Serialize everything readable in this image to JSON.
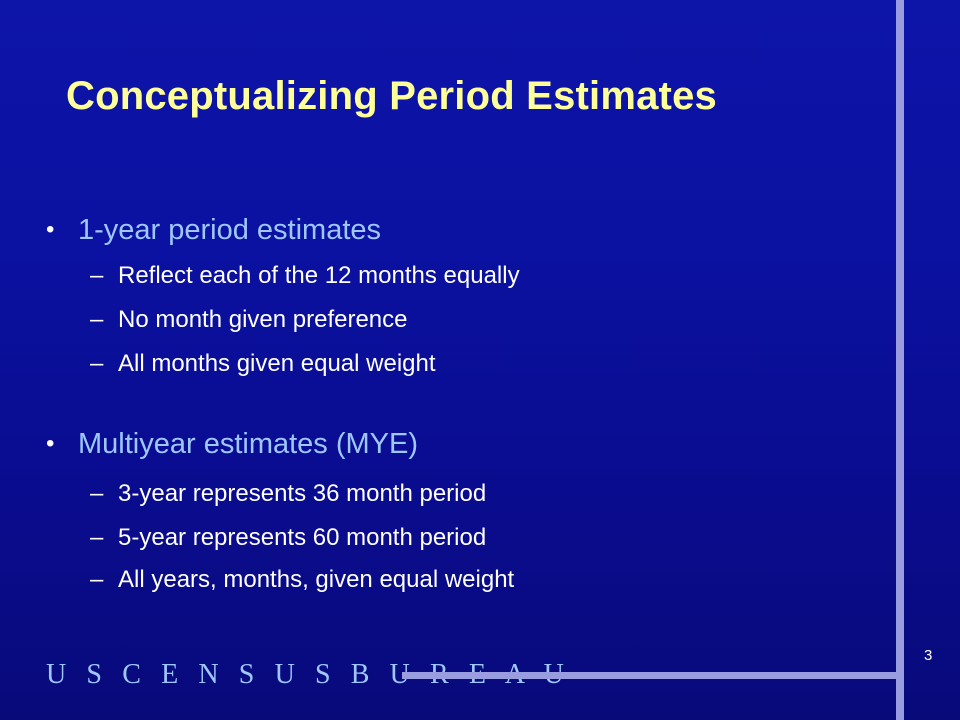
{
  "slide": {
    "title": "Conceptualizing Period Estimates",
    "sections": [
      {
        "heading": "1-year period estimates",
        "items": [
          "Reflect each of the 12 months equally",
          "No month given preference",
          "All months given equal weight"
        ]
      },
      {
        "heading": "Multiyear estimates (MYE)",
        "items": [
          "3-year represents 36 month period",
          "5-year represents 60 month period",
          "All years, months, given equal weight"
        ]
      }
    ],
    "bullet_glyph": "•",
    "dash_glyph": "–",
    "footer_logo": "U S C E N S U S B U R E A U",
    "page_number": "3"
  },
  "colors": {
    "background": "#0b11a0",
    "title": "#ffff99",
    "bullet_heading": "#9ec7ff",
    "body_text": "#ffffff",
    "accent_line": "#9a9ce0"
  }
}
